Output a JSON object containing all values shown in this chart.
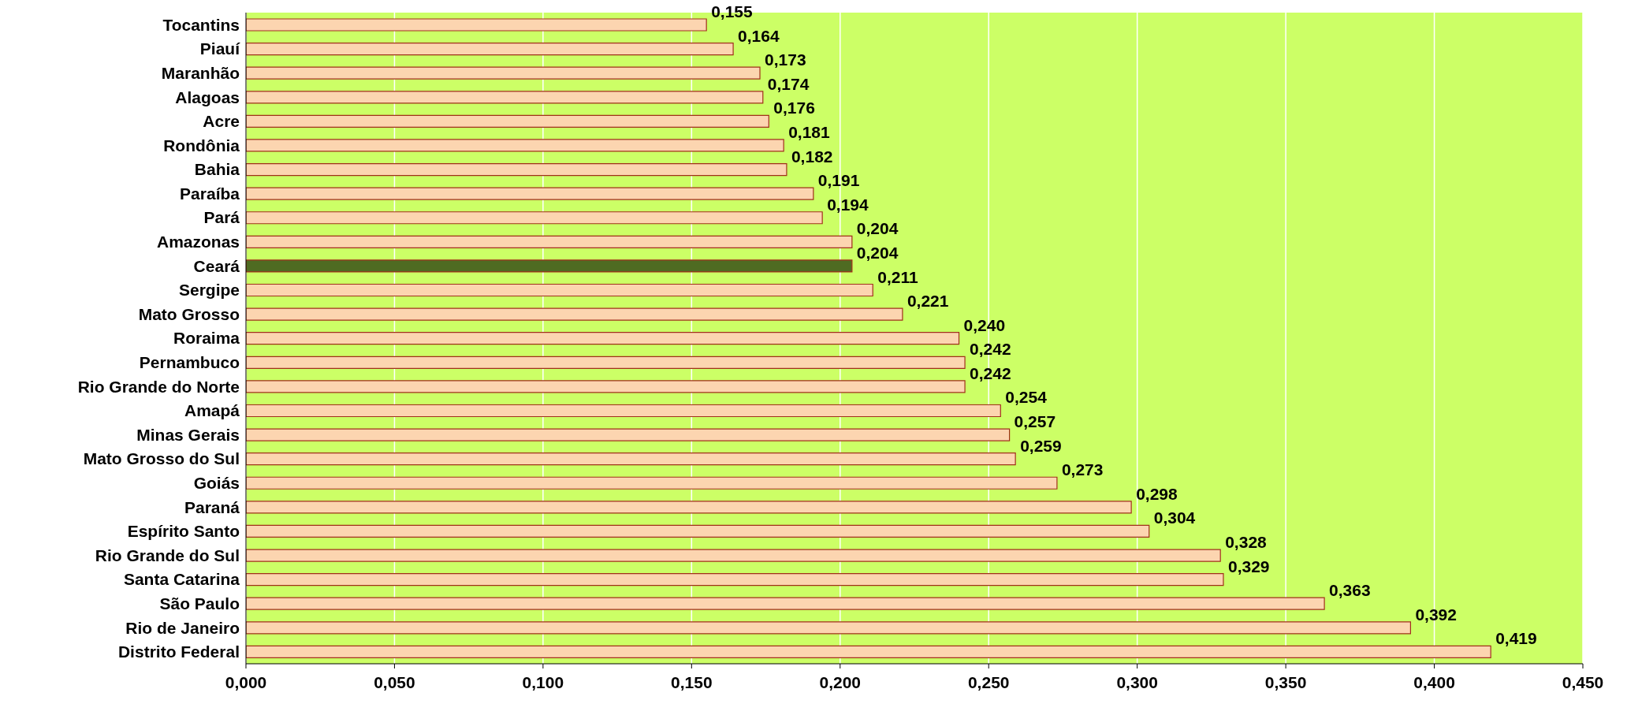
{
  "chart_data": {
    "type": "bar",
    "orientation": "horizontal",
    "categories": [
      "Tocantins",
      "Piauí",
      "Maranhão",
      "Alagoas",
      "Acre",
      "Rondônia",
      "Bahia",
      "Paraíba",
      "Pará",
      "Amazonas",
      "Ceará",
      "Sergipe",
      "Mato Grosso",
      "Roraima",
      "Pernambuco",
      "Rio Grande do Norte",
      "Amapá",
      "Minas Gerais",
      "Mato Grosso do Sul",
      "Goiás",
      "Paraná",
      "Espírito Santo",
      "Rio Grande do Sul",
      "Santa Catarina",
      "São Paulo",
      "Rio de Janeiro",
      "Distrito Federal"
    ],
    "values": [
      0.155,
      0.164,
      0.173,
      0.174,
      0.176,
      0.181,
      0.182,
      0.191,
      0.194,
      0.204,
      0.204,
      0.211,
      0.221,
      0.24,
      0.242,
      0.242,
      0.254,
      0.257,
      0.259,
      0.273,
      0.298,
      0.304,
      0.328,
      0.329,
      0.363,
      0.392,
      0.419
    ],
    "value_labels": [
      "0,155",
      "0,164",
      "0,173",
      "0,174",
      "0,176",
      "0,181",
      "0,182",
      "0,191",
      "0,194",
      "0,204",
      "0,204",
      "0,211",
      "0,221",
      "0,240",
      "0,242",
      "0,242",
      "0,254",
      "0,257",
      "0,259",
      "0,273",
      "0,298",
      "0,304",
      "0,328",
      "0,329",
      "0,363",
      "0,392",
      "0,419"
    ],
    "colors": [
      "#fcd5b0",
      "#fcd5b0",
      "#fcd5b0",
      "#fcd5b0",
      "#fcd5b0",
      "#fcd5b0",
      "#fcd5b0",
      "#fcd5b0",
      "#fcd5b0",
      "#fcd5b0",
      "#4f6b22",
      "#fcd5b0",
      "#fcd5b0",
      "#fcd5b0",
      "#fcd5b0",
      "#fcd5b0",
      "#fcd5b0",
      "#fcd5b0",
      "#fcd5b0",
      "#fcd5b0",
      "#fcd5b0",
      "#fcd5b0",
      "#fcd5b0",
      "#fcd5b0",
      "#fcd5b0",
      "#fcd5b0",
      "#fcd5b0"
    ],
    "xlim": [
      0,
      0.45
    ],
    "xticks": [
      {
        "value": 0,
        "label": "0,000"
      },
      {
        "value": 0.05,
        "label": "0,050"
      },
      {
        "value": 0.1,
        "label": "0,100"
      },
      {
        "value": 0.15,
        "label": "0,150"
      },
      {
        "value": 0.2,
        "label": "0,200"
      },
      {
        "value": 0.25,
        "label": "0,250"
      },
      {
        "value": 0.3,
        "label": "0,300"
      },
      {
        "value": 0.35,
        "label": "0,350"
      },
      {
        "value": 0.4,
        "label": "0,400"
      },
      {
        "value": 0.45,
        "label": "0,450"
      }
    ],
    "grid": "x"
  }
}
